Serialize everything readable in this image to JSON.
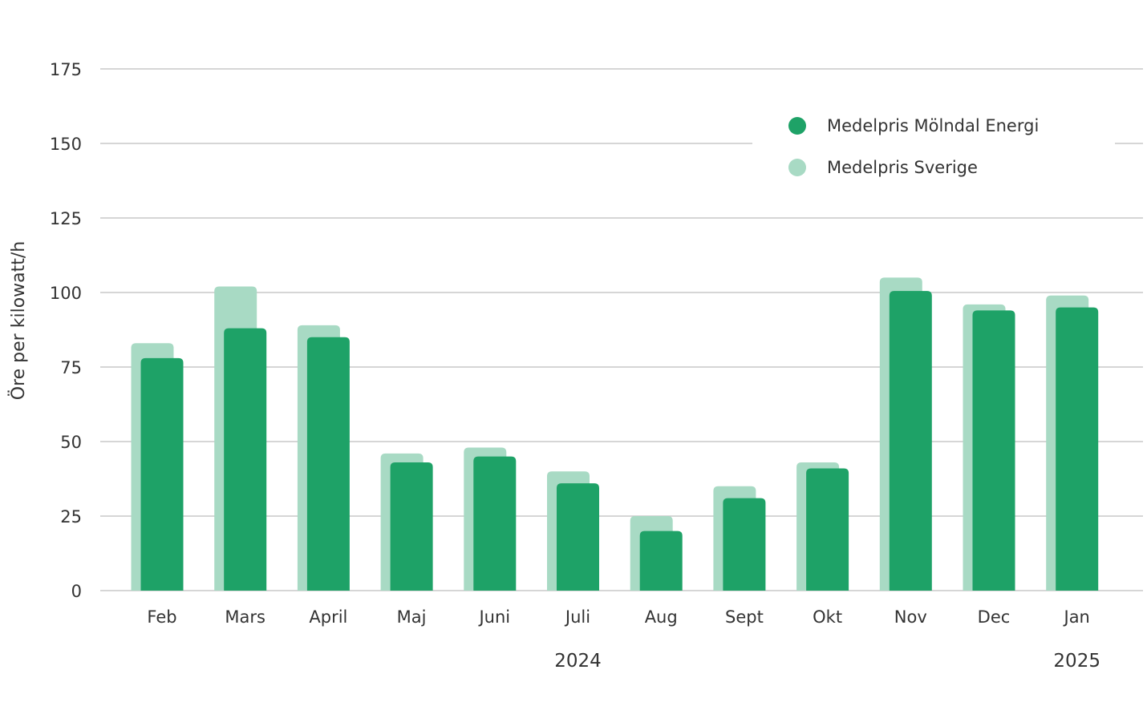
{
  "chart_data": {
    "type": "bar",
    "ylabel": "Öre per kilowatt/h",
    "ylim": [
      0,
      175
    ],
    "yticks": [
      0,
      25,
      50,
      75,
      100,
      125,
      150,
      175
    ],
    "grid": true,
    "legend_position": "top-right",
    "categories": [
      "Feb",
      "Mars",
      "April",
      "Maj",
      "Juni",
      "Juli",
      "Aug",
      "Sept",
      "Okt",
      "Nov",
      "Dec",
      "Jan"
    ],
    "year_labels": [
      {
        "text": "2024",
        "category": "Juli"
      },
      {
        "text": "2025",
        "category": "Jan"
      }
    ],
    "series": [
      {
        "name": "Medelpris Sverige",
        "color": "#a8dac4",
        "values": [
          83,
          102,
          89,
          46,
          48,
          40,
          25,
          35,
          43,
          105,
          96,
          99
        ]
      },
      {
        "name": "Medelpris Mölndal Energi",
        "color": "#1ea267",
        "values": [
          78,
          88,
          85,
          43,
          45,
          36,
          20,
          31,
          41,
          100.5,
          94,
          95
        ]
      }
    ],
    "legend_order": [
      1,
      0
    ]
  }
}
